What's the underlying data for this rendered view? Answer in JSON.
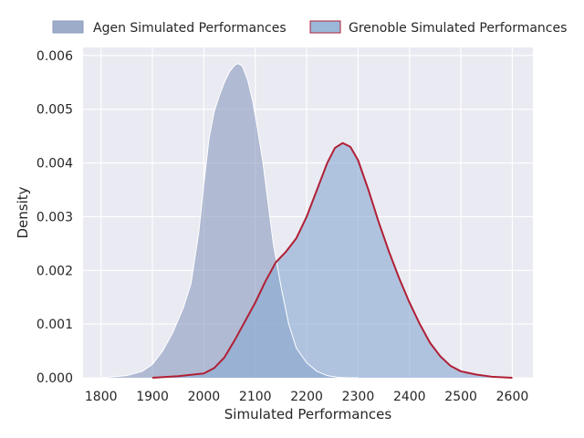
{
  "chart_data": {
    "type": "area",
    "title": "",
    "xlabel": "Simulated Performances",
    "ylabel": "Density",
    "xlim": [
      1765,
      2640
    ],
    "ylim": [
      0,
      0.00615
    ],
    "x_ticks": [
      1800,
      1900,
      2000,
      2100,
      2200,
      2300,
      2400,
      2500,
      2600
    ],
    "y_ticks": [
      0.0,
      0.001,
      0.002,
      0.003,
      0.004,
      0.005,
      0.006
    ],
    "y_tick_labels": [
      "0.000",
      "0.001",
      "0.002",
      "0.003",
      "0.004",
      "0.005",
      "0.006"
    ],
    "grid": true,
    "legend_position": "top",
    "series": [
      {
        "name": "Agen Simulated Performances",
        "fill": "#8c9dbf",
        "line": "#ffffff",
        "x": [
          1800,
          1850,
          1880,
          1900,
          1920,
          1940,
          1960,
          1975,
          1990,
          2000,
          2010,
          2020,
          2030,
          2040,
          2050,
          2060,
          2067,
          2075,
          2085,
          2095,
          2105,
          2115,
          2125,
          2135,
          2150,
          2165,
          2180,
          2200,
          2220,
          2240,
          2260,
          2280,
          2300
        ],
        "y": [
          0.0,
          4e-05,
          0.00012,
          0.00025,
          0.0005,
          0.00085,
          0.0013,
          0.00175,
          0.0027,
          0.0036,
          0.00445,
          0.00495,
          0.00525,
          0.0055,
          0.0057,
          0.00582,
          0.00585,
          0.0058,
          0.00555,
          0.00515,
          0.0046,
          0.004,
          0.00325,
          0.0025,
          0.0017,
          0.001,
          0.00055,
          0.00028,
          0.00012,
          4e-05,
          1e-05,
          0.0,
          0.0
        ]
      },
      {
        "name": "Grenoble Simulated Performances",
        "fill": "#8aabd3",
        "line": "#b02035",
        "x": [
          1900,
          1950,
          2000,
          2020,
          2040,
          2060,
          2080,
          2100,
          2120,
          2140,
          2160,
          2180,
          2200,
          2220,
          2240,
          2255,
          2270,
          2285,
          2300,
          2320,
          2340,
          2360,
          2380,
          2400,
          2420,
          2440,
          2460,
          2480,
          2500,
          2530,
          2560,
          2600
        ],
        "y": [
          0.0,
          3e-05,
          8e-05,
          0.00018,
          0.00038,
          0.0007,
          0.00105,
          0.0014,
          0.0018,
          0.00215,
          0.00235,
          0.0026,
          0.003,
          0.0035,
          0.004,
          0.00428,
          0.00437,
          0.0043,
          0.00405,
          0.0035,
          0.0029,
          0.00235,
          0.00185,
          0.0014,
          0.001,
          0.00065,
          0.0004,
          0.00022,
          0.00012,
          6e-05,
          2e-05,
          0.0
        ]
      }
    ]
  }
}
